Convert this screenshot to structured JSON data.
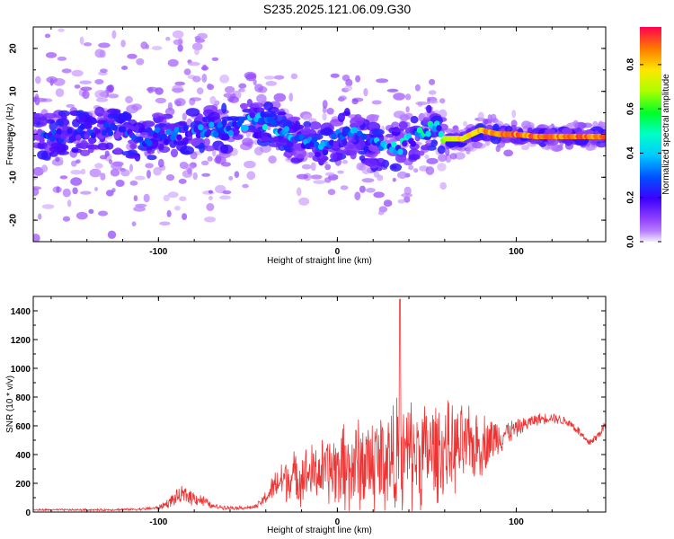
{
  "title": "S235.2025.121.06.09.G30",
  "chart_data": [
    {
      "type": "heatmap",
      "xlabel": "Height of straight line (km)",
      "ylabel": "Frequency (Hz)",
      "xlim": [
        -170,
        150
      ],
      "ylim": [
        -25,
        25
      ],
      "xticks": [
        -100,
        0,
        100
      ],
      "yticks": [
        -20,
        -10,
        0,
        10,
        20
      ],
      "colorbar": {
        "label": "Normalized spectral amplitude",
        "range": [
          0,
          1
        ],
        "ticks": [
          "0.0",
          "0.2",
          "0.4",
          "0.6",
          "0.8"
        ],
        "colors": [
          "#ffffff",
          "#d6b4ff",
          "#8a2be2",
          "#3a00ff",
          "#0000ff",
          "#00b4ff",
          "#00ffd0",
          "#00ff00",
          "#a0ff00",
          "#ffff00",
          "#ffa000",
          "#ff3000",
          "#ff0060"
        ]
      },
      "ridge": {
        "x": [
          -170,
          -150,
          -130,
          -110,
          -90,
          -70,
          -55,
          -45,
          -35,
          -25,
          -15,
          -5,
          5,
          15,
          25,
          35,
          45,
          55,
          60,
          70,
          80,
          90,
          100,
          110,
          120,
          130,
          145
        ],
        "f": [
          0,
          0,
          1,
          -1,
          0,
          1,
          2,
          4,
          2,
          -1,
          -2,
          -3,
          1,
          -2,
          -3,
          -3,
          0,
          2,
          -1,
          -1,
          1,
          0,
          0,
          -0.5,
          -0.5,
          -0.5,
          -0.5
        ],
        "amp": [
          0.35,
          0.35,
          0.35,
          0.4,
          0.4,
          0.45,
          0.5,
          0.55,
          0.55,
          0.5,
          0.5,
          0.5,
          0.45,
          0.45,
          0.5,
          0.55,
          0.6,
          0.65,
          0.8,
          0.85,
          0.9,
          0.95,
          0.97,
          0.97,
          0.97,
          0.97,
          0.95
        ]
      },
      "grid": false,
      "legend": "right"
    },
    {
      "type": "line",
      "xlabel": "Height of straight line (km)",
      "ylabel": "SNR (10 * v/v)",
      "xlim": [
        -170,
        150
      ],
      "ylim": [
        0,
        1500
      ],
      "xticks": [
        -100,
        0,
        100
      ],
      "yticks": [
        0,
        200,
        400,
        600,
        800,
        1000,
        1200,
        1400
      ],
      "series": [
        {
          "color": "#ee3333",
          "x": [
            -170,
            -150,
            -130,
            -110,
            -100,
            -95,
            -90,
            -85,
            -80,
            -75,
            -70,
            -60,
            -50,
            -45,
            -40,
            -35,
            -30,
            -20,
            -10,
            0,
            10,
            20,
            30,
            40,
            50,
            60,
            70,
            80,
            90,
            100,
            110,
            120,
            130,
            135,
            140,
            145,
            150
          ],
          "base": [
            15,
            15,
            15,
            20,
            30,
            60,
            100,
            120,
            100,
            80,
            40,
            30,
            30,
            40,
            100,
            180,
            230,
            250,
            280,
            300,
            330,
            350,
            380,
            400,
            420,
            430,
            450,
            470,
            530,
            580,
            640,
            660,
            620,
            560,
            480,
            520,
            610
          ],
          "amp": [
            8,
            8,
            8,
            10,
            15,
            40,
            60,
            80,
            60,
            50,
            20,
            15,
            15,
            20,
            60,
            120,
            180,
            220,
            250,
            320,
            380,
            420,
            450,
            460,
            420,
            380,
            330,
            260,
            150,
            70,
            50,
            40,
            40,
            40,
            40,
            40,
            40
          ]
        }
      ],
      "grid": false
    }
  ]
}
